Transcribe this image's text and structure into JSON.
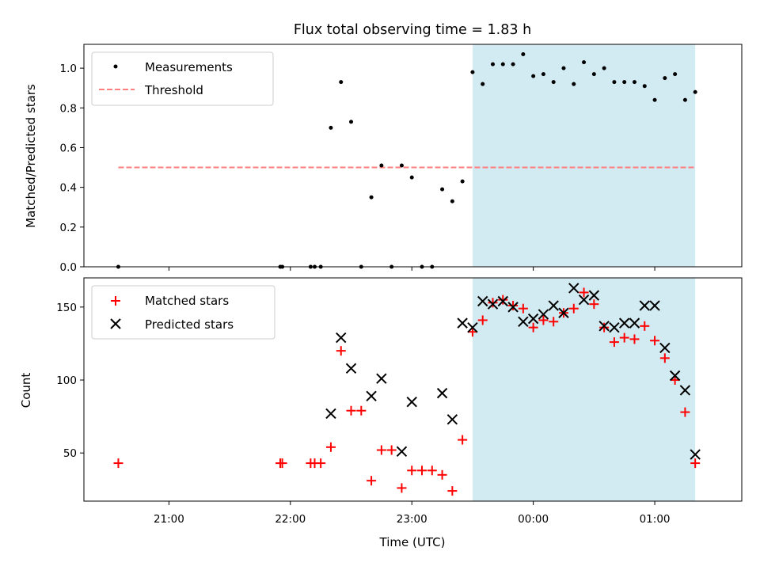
{
  "title": "Flux total observing time = 1.83 h",
  "x_label": "Time (UTC)",
  "x_tick_labels": [
    "21:00",
    "22:00",
    "23:00",
    "00:00",
    "01:00"
  ],
  "colors": {
    "measurements": "#000000",
    "threshold": "#ff7f7f",
    "matched": "#ff0000",
    "predicted": "#000000",
    "shade": "#add8e6"
  },
  "chart_data": [
    {
      "type": "scatter",
      "panel": "top",
      "ylabel": "Matched/Predicted stars",
      "xlabel": "",
      "xlim": [
        "20:18",
        "01:43"
      ],
      "ylim": [
        0,
        1.12
      ],
      "yticks": [
        0.0,
        0.2,
        0.4,
        0.6,
        0.8,
        1.0
      ],
      "ytick_labels": [
        "0.0",
        "0.2",
        "0.4",
        "0.6",
        "0.8",
        "1.0"
      ],
      "xticks": [
        "21:00",
        "22:00",
        "23:00",
        "00:00",
        "01:00"
      ],
      "legend": {
        "position": "upper left",
        "entries": [
          "Measurements",
          "Threshold"
        ]
      },
      "shaded_span": [
        "23:30",
        "01:20"
      ],
      "threshold": {
        "name": "Threshold",
        "y": 0.5,
        "x_range": [
          "20:35",
          "01:20"
        ]
      },
      "series": [
        {
          "name": "Measurements",
          "marker": "dot",
          "points": [
            [
              "20:35",
              0.0
            ],
            [
              "21:55",
              0.0
            ],
            [
              "21:56",
              0.0
            ],
            [
              "22:10",
              0.0
            ],
            [
              "22:12",
              0.0
            ],
            [
              "22:15",
              0.0
            ],
            [
              "22:20",
              0.7
            ],
            [
              "22:25",
              0.93
            ],
            [
              "22:30",
              0.73
            ],
            [
              "22:35",
              0.0
            ],
            [
              "22:40",
              0.35
            ],
            [
              "22:45",
              0.51
            ],
            [
              "22:50",
              0.0
            ],
            [
              "22:55",
              0.51
            ],
            [
              "23:00",
              0.45
            ],
            [
              "23:05",
              0.0
            ],
            [
              "23:10",
              0.0
            ],
            [
              "23:15",
              0.39
            ],
            [
              "23:20",
              0.33
            ],
            [
              "23:25",
              0.43
            ],
            [
              "23:30",
              0.98
            ],
            [
              "23:35",
              0.92
            ],
            [
              "23:40",
              1.02
            ],
            [
              "23:45",
              1.02
            ],
            [
              "23:50",
              1.02
            ],
            [
              "23:55",
              1.07
            ],
            [
              "00:00",
              0.96
            ],
            [
              "00:05",
              0.97
            ],
            [
              "00:10",
              0.93
            ],
            [
              "00:15",
              1.0
            ],
            [
              "00:20",
              0.92
            ],
            [
              "00:25",
              1.03
            ],
            [
              "00:30",
              0.97
            ],
            [
              "00:35",
              1.0
            ],
            [
              "00:40",
              0.93
            ],
            [
              "00:45",
              0.93
            ],
            [
              "00:50",
              0.93
            ],
            [
              "00:55",
              0.91
            ],
            [
              "01:00",
              0.84
            ],
            [
              "01:05",
              0.95
            ],
            [
              "01:10",
              0.97
            ],
            [
              "01:15",
              0.84
            ],
            [
              "01:20",
              0.88
            ]
          ]
        }
      ]
    },
    {
      "type": "scatter",
      "panel": "bottom",
      "ylabel": "Count",
      "xlabel": "Time (UTC)",
      "xlim": [
        "20:18",
        "01:43"
      ],
      "ylim": [
        17,
        170
      ],
      "yticks": [
        50,
        100,
        150
      ],
      "ytick_labels": [
        "50",
        "100",
        "150"
      ],
      "xticks": [
        "21:00",
        "22:00",
        "23:00",
        "00:00",
        "01:00"
      ],
      "legend": {
        "position": "upper left",
        "entries": [
          "Matched stars",
          "Predicted stars"
        ]
      },
      "shaded_span": [
        "23:30",
        "01:20"
      ],
      "series": [
        {
          "name": "Matched stars",
          "marker": "plus",
          "points": [
            [
              "20:35",
              43
            ],
            [
              "21:55",
              43
            ],
            [
              "21:56",
              43
            ],
            [
              "22:10",
              43
            ],
            [
              "22:12",
              43
            ],
            [
              "22:15",
              43
            ],
            [
              "22:20",
              54
            ],
            [
              "22:25",
              120
            ],
            [
              "22:30",
              79
            ],
            [
              "22:35",
              79
            ],
            [
              "22:40",
              31
            ],
            [
              "22:45",
              52
            ],
            [
              "22:50",
              52
            ],
            [
              "22:55",
              26
            ],
            [
              "23:00",
              38
            ],
            [
              "23:05",
              38
            ],
            [
              "23:10",
              38
            ],
            [
              "23:15",
              35
            ],
            [
              "23:20",
              24
            ],
            [
              "23:25",
              59
            ],
            [
              "23:30",
              133
            ],
            [
              "23:35",
              141
            ],
            [
              "23:40",
              153
            ],
            [
              "23:45",
              155
            ],
            [
              "23:50",
              151
            ],
            [
              "23:55",
              149
            ],
            [
              "00:00",
              136
            ],
            [
              "00:05",
              141
            ],
            [
              "00:10",
              140
            ],
            [
              "00:15",
              146
            ],
            [
              "00:20",
              149
            ],
            [
              "00:25",
              160
            ],
            [
              "00:30",
              152
            ],
            [
              "00:35",
              136
            ],
            [
              "00:40",
              126
            ],
            [
              "00:45",
              129
            ],
            [
              "00:50",
              128
            ],
            [
              "00:55",
              137
            ],
            [
              "01:00",
              127
            ],
            [
              "01:05",
              115
            ],
            [
              "01:10",
              100
            ],
            [
              "01:15",
              78
            ],
            [
              "01:20",
              43
            ]
          ]
        },
        {
          "name": "Predicted stars",
          "marker": "x",
          "points": [
            [
              "22:20",
              77
            ],
            [
              "22:25",
              129
            ],
            [
              "22:30",
              108
            ],
            [
              "22:40",
              89
            ],
            [
              "22:45",
              101
            ],
            [
              "22:55",
              51
            ],
            [
              "23:00",
              85
            ],
            [
              "23:15",
              91
            ],
            [
              "23:20",
              73
            ],
            [
              "23:25",
              139
            ],
            [
              "23:30",
              136
            ],
            [
              "23:35",
              154
            ],
            [
              "23:40",
              152
            ],
            [
              "23:45",
              154
            ],
            [
              "23:50",
              150
            ],
            [
              "23:55",
              140
            ],
            [
              "00:00",
              142
            ],
            [
              "00:05",
              145
            ],
            [
              "00:10",
              151
            ],
            [
              "00:15",
              146
            ],
            [
              "00:20",
              163
            ],
            [
              "00:25",
              155
            ],
            [
              "00:30",
              158
            ],
            [
              "00:35",
              137
            ],
            [
              "00:40",
              136
            ],
            [
              "00:45",
              139
            ],
            [
              "00:50",
              139
            ],
            [
              "00:55",
              151
            ],
            [
              "01:00",
              151
            ],
            [
              "01:05",
              122
            ],
            [
              "01:10",
              103
            ],
            [
              "01:15",
              93
            ],
            [
              "01:20",
              49
            ]
          ]
        }
      ]
    }
  ]
}
